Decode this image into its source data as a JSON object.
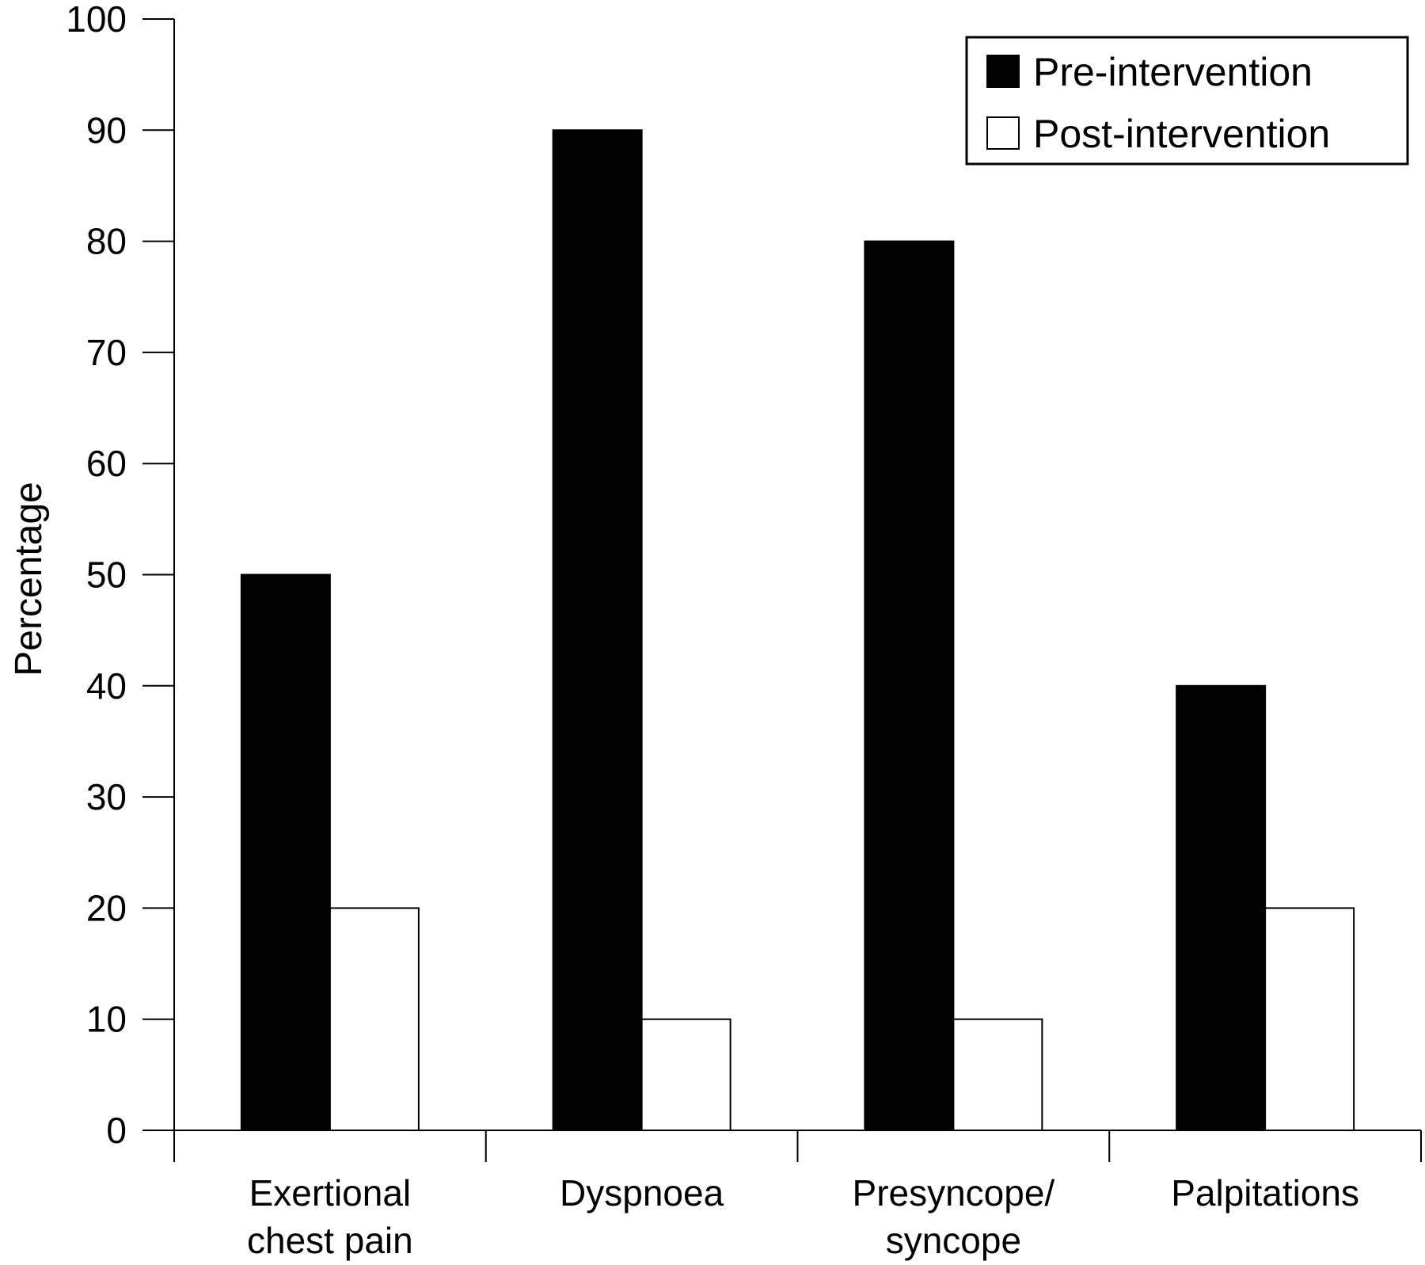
{
  "chart_data": {
    "type": "bar",
    "title": "",
    "xlabel": "",
    "ylabel": "Percentage",
    "ylim": [
      0,
      100
    ],
    "yticks": [
      0,
      10,
      20,
      30,
      40,
      50,
      60,
      70,
      80,
      90,
      100
    ],
    "categories": [
      [
        "Exertional",
        "chest pain"
      ],
      [
        "Dyspnoea"
      ],
      [
        "Presyncope/",
        "syncope"
      ],
      [
        "Palpitations"
      ]
    ],
    "series": [
      {
        "name": "Pre-intervention",
        "values": [
          50,
          90,
          80,
          40
        ],
        "fill": "#000000"
      },
      {
        "name": "Post-intervention",
        "values": [
          20,
          10,
          10,
          20
        ],
        "fill": "#ffffff"
      }
    ],
    "grid": false,
    "legend": "top-right"
  }
}
